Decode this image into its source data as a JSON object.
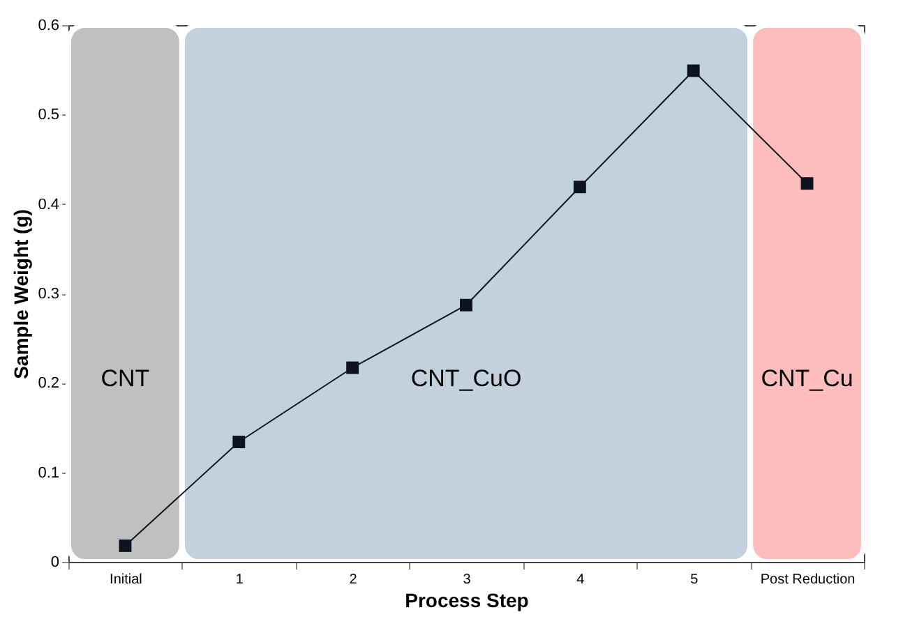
{
  "chart_data": {
    "type": "line",
    "xlabel": "Process Step",
    "ylabel": "Sample Weight (g)",
    "categories": [
      "Initial",
      "1",
      "2",
      "3",
      "4",
      "5",
      "Post Reduction"
    ],
    "series": [
      {
        "color": "#0d1420",
        "values": [
          0.018,
          0.134,
          0.217,
          0.287,
          0.419,
          0.549,
          0.423
        ]
      }
    ],
    "marker": "square",
    "line_style": "solid",
    "ylim": [
      0,
      0.6
    ],
    "yticks": [
      0,
      0.1,
      0.2,
      0.3,
      0.4,
      0.5,
      0.6
    ],
    "bands": [
      {
        "axis": "x",
        "from": "Initial",
        "to": "Initial",
        "label": "CNT",
        "color": "#c0c0c0"
      },
      {
        "axis": "x",
        "from": "1",
        "to": "5",
        "label": "CNT_CuO",
        "color": "#c3d1de"
      },
      {
        "axis": "x",
        "from": "Post Reduction",
        "to": "Post Reduction",
        "label": "CNT_Cu",
        "color": "#fdbdbd"
      }
    ]
  }
}
